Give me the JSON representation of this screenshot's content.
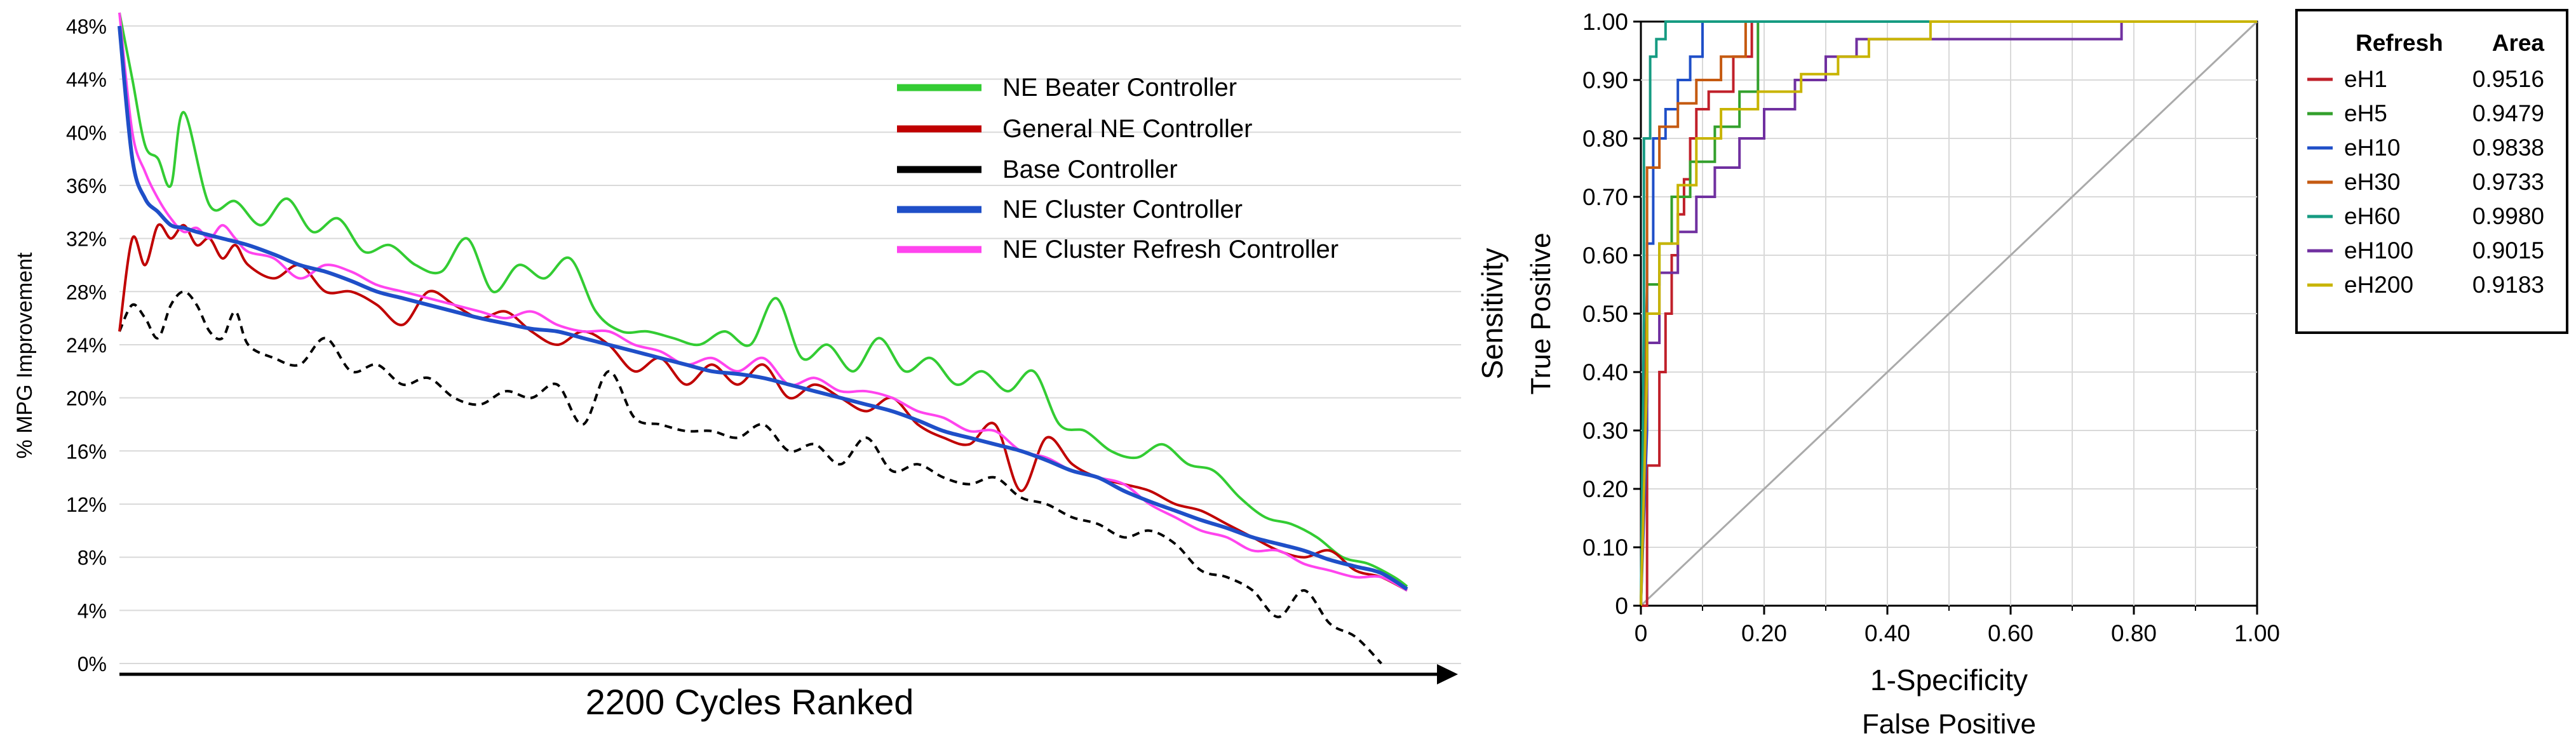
{
  "chart_data": [
    {
      "type": "line",
      "title": "",
      "xlabel": "2200 Cycles Ranked",
      "ylabel": "% MPG Improvement",
      "ylim": [
        0,
        49
      ],
      "xlim": [
        0,
        100
      ],
      "yticks": [
        "0%",
        "4%",
        "8%",
        "12%",
        "16%",
        "20%",
        "24%",
        "28%",
        "32%",
        "36%",
        "40%",
        "44%",
        "48%"
      ],
      "ytick_values": [
        0,
        4,
        8,
        12,
        16,
        20,
        24,
        28,
        32,
        36,
        40,
        44,
        48
      ],
      "legend_position": "top-right",
      "series": [
        {
          "name": "NE Beater Controller",
          "color": "#33cc33",
          "dash": "solid",
          "x": [
            0,
            1,
            2,
            3,
            4,
            5,
            7,
            9,
            11,
            13,
            15,
            17,
            19,
            21,
            23,
            25,
            27,
            29,
            31,
            33,
            35,
            37,
            39,
            41,
            43,
            45,
            47,
            49,
            51,
            53,
            55,
            57,
            59,
            61,
            63,
            65,
            67,
            69,
            71,
            73,
            75,
            77,
            79,
            81,
            83,
            85,
            87,
            89,
            91,
            93,
            95,
            97,
            99,
            100
          ],
          "values": [
            49,
            44,
            39,
            38,
            36,
            41.5,
            34.5,
            34.8,
            33,
            35,
            32.5,
            33.5,
            31,
            31.5,
            30,
            29.5,
            32,
            28,
            30,
            29,
            30.5,
            26.5,
            25,
            25,
            24.5,
            24,
            25,
            24,
            27.5,
            23,
            24,
            22,
            24.5,
            22,
            23,
            21,
            22,
            20.5,
            22,
            18,
            17.5,
            16,
            15.5,
            16.5,
            15,
            14.5,
            12.5,
            11,
            10.5,
            9.5,
            8,
            7.5,
            6.5,
            5.8
          ]
        },
        {
          "name": "General NE Controller",
          "color": "#c00000",
          "dash": "solid",
          "x": [
            0,
            1,
            2,
            3,
            4,
            5,
            6,
            7,
            8,
            9,
            10,
            12,
            14,
            16,
            18,
            20,
            22,
            24,
            26,
            28,
            30,
            32,
            34,
            36,
            38,
            40,
            42,
            44,
            46,
            48,
            50,
            52,
            54,
            56,
            58,
            60,
            62,
            64,
            66,
            68,
            70,
            72,
            74,
            76,
            78,
            80,
            82,
            84,
            86,
            88,
            90,
            92,
            94,
            96,
            98,
            100
          ],
          "values": [
            25,
            32,
            30,
            33,
            32,
            33,
            31.5,
            32,
            30.5,
            31.5,
            30,
            29,
            30,
            28,
            28,
            27,
            25.5,
            28,
            27,
            26,
            26.5,
            25,
            24,
            25,
            24,
            22,
            23,
            21,
            22.5,
            21,
            22.5,
            20,
            21,
            20,
            19,
            20,
            18,
            17,
            16.5,
            18,
            13,
            17,
            15,
            14,
            13.5,
            13,
            12,
            11.5,
            10.5,
            9.5,
            8.5,
            8,
            8.5,
            7,
            6.5,
            5.5
          ]
        },
        {
          "name": "Base Controller",
          "color": "#000000",
          "dash": "dashed",
          "x": [
            0,
            1,
            2,
            3,
            4,
            5,
            6,
            7,
            8,
            9,
            10,
            12,
            14,
            16,
            18,
            20,
            22,
            24,
            26,
            28,
            30,
            32,
            34,
            36,
            38,
            40,
            42,
            44,
            46,
            48,
            50,
            52,
            54,
            56,
            58,
            60,
            62,
            64,
            66,
            68,
            70,
            72,
            74,
            76,
            78,
            80,
            82,
            84,
            86,
            88,
            90,
            92,
            94,
            96,
            98
          ],
          "values": [
            25,
            27,
            26,
            24.5,
            27,
            28,
            27,
            25,
            24.5,
            26.5,
            24,
            23,
            22.5,
            24.5,
            22,
            22.5,
            21,
            21.5,
            20,
            19.5,
            20.5,
            20,
            21,
            18,
            22,
            18.5,
            18,
            17.5,
            17.5,
            17,
            18,
            16,
            16.5,
            15,
            17,
            14.5,
            15,
            14,
            13.5,
            14,
            12.5,
            12,
            11,
            10.5,
            9.5,
            10,
            9,
            7,
            6.5,
            5.5,
            3.5,
            5.5,
            3,
            2,
            0
          ]
        },
        {
          "name": "NE Cluster Controller",
          "color": "#1f4fc8",
          "dash": "solid",
          "x": [
            0,
            1,
            2,
            3,
            4,
            5,
            6,
            8,
            10,
            12,
            14,
            16,
            18,
            20,
            22,
            24,
            26,
            28,
            30,
            32,
            34,
            36,
            38,
            40,
            42,
            44,
            46,
            48,
            50,
            52,
            54,
            56,
            58,
            60,
            62,
            64,
            66,
            68,
            70,
            72,
            74,
            76,
            78,
            80,
            82,
            84,
            86,
            88,
            90,
            92,
            94,
            96,
            98,
            100
          ],
          "values": [
            48,
            38,
            35,
            34,
            33,
            32.8,
            32.5,
            32,
            31.5,
            30.8,
            30,
            29.5,
            28.8,
            28,
            27.5,
            27,
            26.5,
            26,
            25.6,
            25.2,
            25,
            24.5,
            24,
            23.5,
            23,
            22.5,
            22,
            21.8,
            21.5,
            21,
            20.5,
            20,
            19.5,
            19,
            18.3,
            17.5,
            17,
            16.5,
            16,
            15.3,
            14.5,
            14,
            13,
            12.2,
            11.5,
            10.8,
            10.2,
            9.5,
            9,
            8.5,
            7.8,
            7.3,
            6.8,
            5.6
          ]
        },
        {
          "name": "NE Cluster Refresh Controller",
          "color": "#ff44ee",
          "dash": "solid",
          "x": [
            0,
            1,
            2,
            3,
            4,
            5,
            6,
            7,
            8,
            9,
            10,
            12,
            14,
            16,
            18,
            20,
            22,
            24,
            26,
            28,
            30,
            32,
            34,
            36,
            38,
            40,
            42,
            44,
            46,
            48,
            50,
            52,
            54,
            56,
            58,
            60,
            62,
            64,
            66,
            68,
            70,
            72,
            74,
            76,
            78,
            80,
            82,
            84,
            86,
            88,
            90,
            92,
            94,
            96,
            98,
            100
          ],
          "values": [
            49,
            40,
            37,
            35,
            33.5,
            32.5,
            32.8,
            32,
            33,
            32,
            31,
            30.5,
            29,
            30,
            29.5,
            28.5,
            28,
            27.5,
            27,
            26.5,
            26,
            26.5,
            25.5,
            25,
            25,
            24,
            23.5,
            22.5,
            23,
            22,
            23,
            21,
            21.5,
            20.5,
            20.5,
            20,
            19,
            18.5,
            17.5,
            17.5,
            16,
            15.5,
            14.5,
            14,
            13.5,
            12,
            11,
            10,
            9.5,
            8.5,
            8.5,
            7.5,
            7,
            6.5,
            6.5,
            5.5
          ]
        }
      ]
    },
    {
      "type": "line",
      "title": "",
      "xlabel": "1-Specificity",
      "xlabel2": "False Positive",
      "ylabel": "Sensitivity",
      "ylabel2": "True Positive",
      "xlim": [
        0,
        1
      ],
      "ylim": [
        0,
        1
      ],
      "xticks": [
        "0",
        "0.20",
        "0.40",
        "0.60",
        "0.80",
        "1.00"
      ],
      "xtick_values": [
        0,
        0.2,
        0.4,
        0.6,
        0.8,
        1.0
      ],
      "yticks": [
        "0",
        "0.10",
        "0.20",
        "0.30",
        "0.40",
        "0.50",
        "0.60",
        "0.70",
        "0.80",
        "0.90",
        "1.00"
      ],
      "ytick_values": [
        0,
        0.1,
        0.2,
        0.3,
        0.4,
        0.5,
        0.6,
        0.7,
        0.8,
        0.9,
        1.0
      ],
      "grid": true,
      "diagonal_color": "#aaaaaa",
      "legend_header": [
        "Refresh",
        "Area"
      ],
      "legend_position": "right",
      "series": [
        {
          "name": "eH1",
          "area": "0.9516",
          "color": "#c0202a",
          "x": [
            0,
            0.01,
            0.01,
            0.03,
            0.03,
            0.04,
            0.04,
            0.05,
            0.05,
            0.06,
            0.06,
            0.07,
            0.07,
            0.08,
            0.08,
            0.09,
            0.09,
            0.11,
            0.11,
            0.15,
            0.15,
            0.18,
            0.18,
            1.0
          ],
          "y": [
            0,
            0.0,
            0.24,
            0.24,
            0.4,
            0.4,
            0.5,
            0.5,
            0.6,
            0.6,
            0.67,
            0.67,
            0.73,
            0.73,
            0.8,
            0.8,
            0.85,
            0.85,
            0.88,
            0.88,
            0.94,
            0.94,
            1.0,
            1.0
          ]
        },
        {
          "name": "eH5",
          "area": "0.9479",
          "color": "#33a02c",
          "x": [
            0,
            0.01,
            0.01,
            0.03,
            0.03,
            0.05,
            0.05,
            0.08,
            0.08,
            0.12,
            0.12,
            0.16,
            0.16,
            0.19,
            0.19,
            1.0
          ],
          "y": [
            0,
            0.38,
            0.55,
            0.55,
            0.62,
            0.62,
            0.7,
            0.7,
            0.76,
            0.76,
            0.82,
            0.82,
            0.88,
            0.88,
            1.0,
            1.0
          ]
        },
        {
          "name": "eH10",
          "area": "0.9838",
          "color": "#1f4fc8",
          "x": [
            0,
            0.01,
            0.01,
            0.02,
            0.02,
            0.04,
            0.04,
            0.06,
            0.06,
            0.08,
            0.08,
            0.1,
            0.1,
            1.0
          ],
          "y": [
            0,
            0.3,
            0.62,
            0.62,
            0.8,
            0.8,
            0.85,
            0.85,
            0.9,
            0.9,
            0.94,
            0.94,
            1.0,
            1.0
          ]
        },
        {
          "name": "eH30",
          "area": "0.9733",
          "color": "#c55a11",
          "x": [
            0,
            0.01,
            0.01,
            0.03,
            0.03,
            0.06,
            0.06,
            0.09,
            0.09,
            0.13,
            0.13,
            0.17,
            0.17,
            1.0
          ],
          "y": [
            0,
            0.55,
            0.75,
            0.75,
            0.82,
            0.82,
            0.86,
            0.86,
            0.9,
            0.9,
            0.94,
            0.94,
            1.0,
            1.0
          ]
        },
        {
          "name": "eH60",
          "area": "0.9980",
          "color": "#169b82",
          "x": [
            0,
            0.005,
            0.005,
            0.015,
            0.015,
            0.025,
            0.025,
            0.04,
            0.04,
            0.47,
            0.47,
            1.0
          ],
          "y": [
            0,
            0.5,
            0.8,
            0.8,
            0.94,
            0.94,
            0.97,
            0.97,
            1.0,
            1.0,
            1.0,
            1.0
          ]
        },
        {
          "name": "eH100",
          "area": "0.9015",
          "color": "#7030a0",
          "x": [
            0,
            0.01,
            0.01,
            0.03,
            0.03,
            0.06,
            0.06,
            0.09,
            0.09,
            0.12,
            0.12,
            0.16,
            0.16,
            0.2,
            0.2,
            0.25,
            0.25,
            0.3,
            0.3,
            0.35,
            0.35,
            0.78,
            0.78,
            1.0
          ],
          "y": [
            0,
            0.35,
            0.45,
            0.45,
            0.57,
            0.57,
            0.64,
            0.64,
            0.7,
            0.7,
            0.75,
            0.75,
            0.8,
            0.8,
            0.85,
            0.85,
            0.9,
            0.9,
            0.94,
            0.94,
            0.97,
            0.97,
            1.0,
            1.0
          ]
        },
        {
          "name": "eH200",
          "area": "0.9183",
          "color": "#c8b400",
          "x": [
            0,
            0.01,
            0.01,
            0.03,
            0.03,
            0.06,
            0.06,
            0.09,
            0.09,
            0.13,
            0.13,
            0.19,
            0.19,
            0.26,
            0.26,
            0.32,
            0.32,
            0.37,
            0.37,
            0.47,
            0.47,
            1.0
          ],
          "y": [
            0,
            0.4,
            0.5,
            0.5,
            0.62,
            0.62,
            0.72,
            0.72,
            0.8,
            0.8,
            0.85,
            0.85,
            0.88,
            0.88,
            0.91,
            0.91,
            0.94,
            0.94,
            0.97,
            0.97,
            1.0,
            1.0
          ]
        }
      ]
    }
  ]
}
